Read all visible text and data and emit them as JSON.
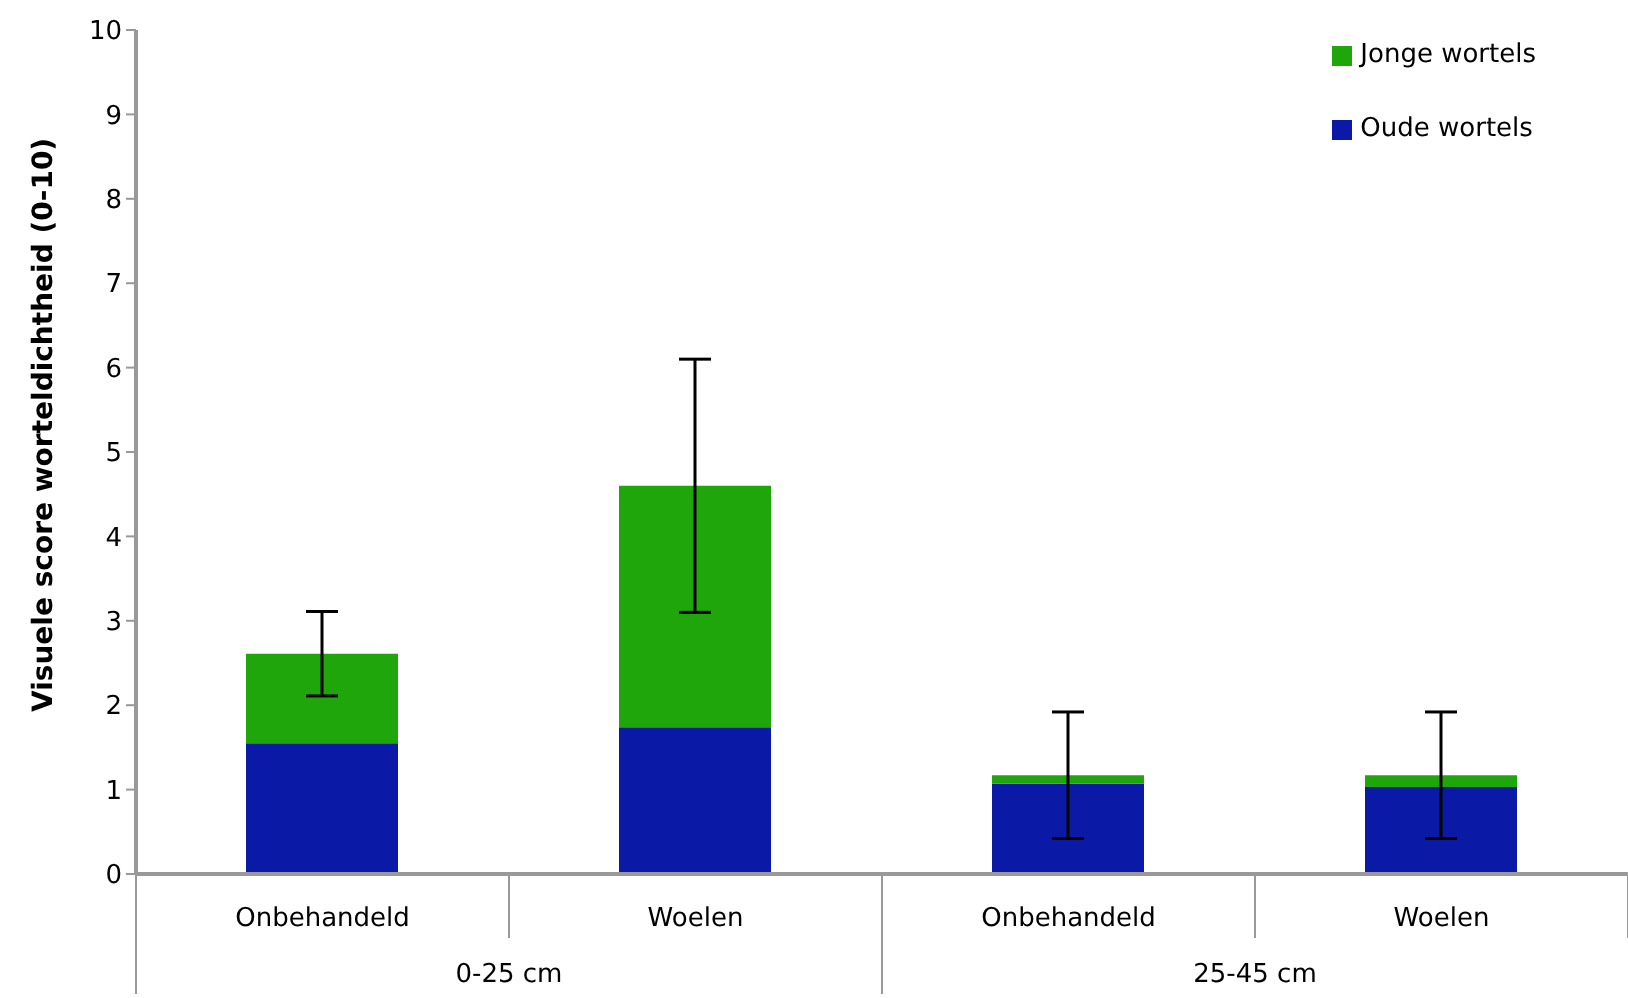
{
  "chart_data": {
    "type": "bar",
    "stacked": true,
    "ylabel": "Visuele score worteldichtheid (0-10)",
    "categories": [
      "Onbehandeld",
      "Woelen",
      "Onbehandeld",
      "Woelen"
    ],
    "series": [
      {
        "name": "Oude wortels",
        "color": "#0a1aa6",
        "values": [
          1.55,
          1.74,
          1.07,
          1.03
        ]
      },
      {
        "name": "Jonge wortels",
        "color": "#1fa60b",
        "values": [
          1.06,
          2.86,
          0.1,
          0.14
        ],
        "errors": [
          0.5,
          1.5,
          0.75,
          0.75
        ]
      }
    ],
    "annotations": [
      "0-25 cm",
      "25-45 cm"
    ],
    "ylim": [
      0,
      10
    ],
    "yticks": [
      0,
      1,
      2,
      3,
      4,
      5,
      6,
      7,
      8,
      9,
      10
    ],
    "legend": "top right"
  }
}
